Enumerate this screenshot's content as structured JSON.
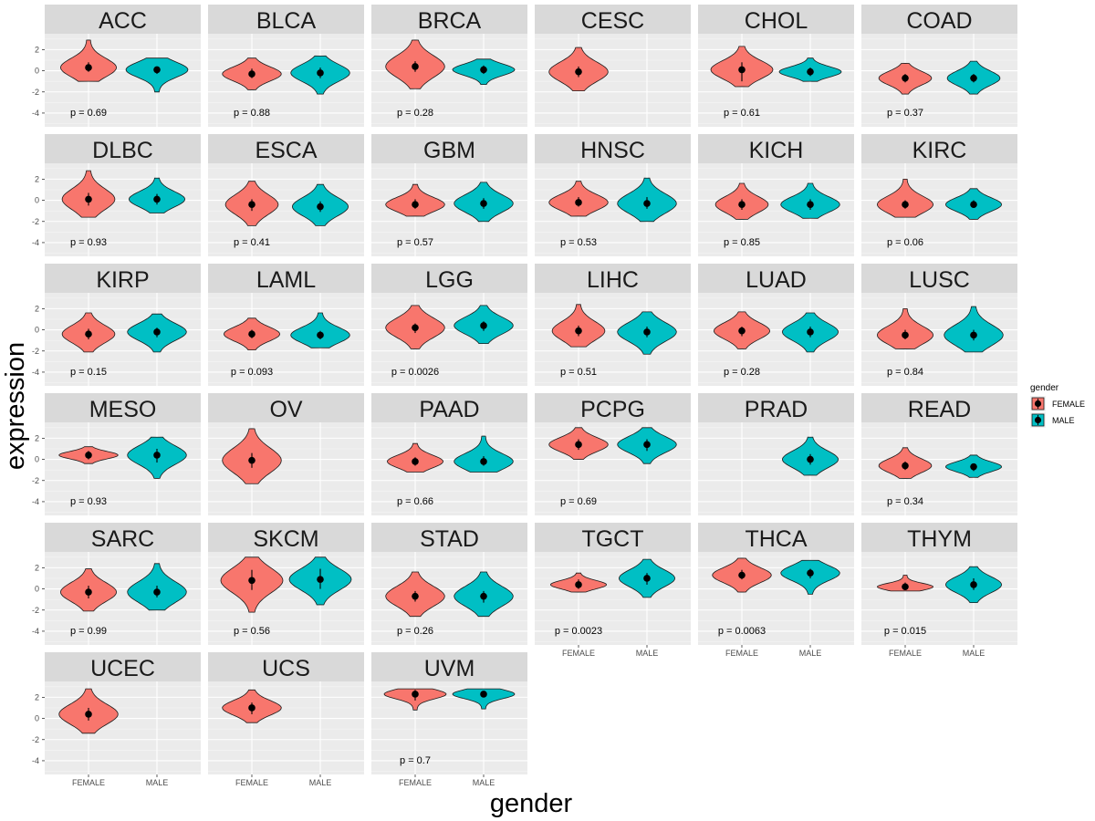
{
  "chart_data": {
    "type": "violin",
    "facet_by": "cancer_type",
    "xlabel": "gender",
    "ylabel": "expression",
    "categories": [
      "FEMALE",
      "MALE"
    ],
    "y_ticks": [
      2,
      0,
      -2,
      -4
    ],
    "ylim": [
      -5.3,
      3.5
    ],
    "legend": {
      "title": "gender",
      "position": "right",
      "items": [
        {
          "label": "FEMALE",
          "color": "#F8766D"
        },
        {
          "label": "MALE",
          "color": "#00BFC4"
        }
      ]
    },
    "panels": [
      {
        "name": "ACC",
        "p": "p = 0.69",
        "groups": [
          {
            "gender": "FEMALE",
            "min": -1.0,
            "max": 2.9,
            "median": 0.3,
            "iqr": [
              -0.1,
              0.8
            ],
            "hw": 0.9
          },
          {
            "gender": "MALE",
            "min": -2.0,
            "max": 1.2,
            "median": 0.1,
            "iqr": [
              -0.3,
              0.4
            ],
            "hw": 1.0
          }
        ]
      },
      {
        "name": "BLCA",
        "p": "p = 0.88",
        "groups": [
          {
            "gender": "FEMALE",
            "min": -1.8,
            "max": 1.2,
            "median": -0.3,
            "iqr": [
              -0.7,
              0.2
            ],
            "hw": 0.95
          },
          {
            "gender": "MALE",
            "min": -2.2,
            "max": 1.4,
            "median": -0.2,
            "iqr": [
              -0.7,
              0.3
            ],
            "hw": 0.95
          }
        ]
      },
      {
        "name": "BRCA",
        "p": "p = 0.28",
        "groups": [
          {
            "gender": "FEMALE",
            "min": -1.7,
            "max": 2.9,
            "median": 0.4,
            "iqr": [
              -0.1,
              0.9
            ],
            "hw": 0.95
          },
          {
            "gender": "MALE",
            "min": -1.3,
            "max": 1.1,
            "median": 0.1,
            "iqr": [
              -0.3,
              0.5
            ],
            "hw": 1.0
          }
        ]
      },
      {
        "name": "CESC",
        "p": "",
        "groups": [
          {
            "gender": "FEMALE",
            "min": -1.9,
            "max": 2.2,
            "median": -0.1,
            "iqr": [
              -0.6,
              0.4
            ],
            "hw": 0.95
          }
        ]
      },
      {
        "name": "CHOL",
        "p": "p = 0.61",
        "groups": [
          {
            "gender": "FEMALE",
            "min": -1.5,
            "max": 2.3,
            "median": 0.1,
            "iqr": [
              -1.0,
              0.8
            ],
            "hw": 1.0
          },
          {
            "gender": "MALE",
            "min": -1.0,
            "max": 1.2,
            "median": -0.1,
            "iqr": [
              -0.5,
              0.3
            ],
            "hw": 1.0
          }
        ]
      },
      {
        "name": "COAD",
        "p": "p = 0.37",
        "groups": [
          {
            "gender": "FEMALE",
            "min": -2.2,
            "max": 0.7,
            "median": -0.7,
            "iqr": [
              -1.1,
              -0.3
            ],
            "hw": 0.85
          },
          {
            "gender": "MALE",
            "min": -2.2,
            "max": 0.9,
            "median": -0.7,
            "iqr": [
              -1.1,
              -0.3
            ],
            "hw": 0.85
          }
        ]
      },
      {
        "name": "DLBC",
        "p": "p = 0.93",
        "groups": [
          {
            "gender": "FEMALE",
            "min": -1.6,
            "max": 2.8,
            "median": 0.1,
            "iqr": [
              -0.5,
              0.7
            ],
            "hw": 0.85
          },
          {
            "gender": "MALE",
            "min": -1.2,
            "max": 2.1,
            "median": 0.1,
            "iqr": [
              -0.4,
              0.6
            ],
            "hw": 0.9
          }
        ]
      },
      {
        "name": "ESCA",
        "p": "p = 0.41",
        "groups": [
          {
            "gender": "FEMALE",
            "min": -2.4,
            "max": 1.8,
            "median": -0.4,
            "iqr": [
              -1.0,
              0.1
            ],
            "hw": 0.85
          },
          {
            "gender": "MALE",
            "min": -2.4,
            "max": 1.5,
            "median": -0.6,
            "iqr": [
              -1.1,
              -0.1
            ],
            "hw": 0.9
          }
        ]
      },
      {
        "name": "GBM",
        "p": "p = 0.57",
        "groups": [
          {
            "gender": "FEMALE",
            "min": -1.5,
            "max": 1.5,
            "median": -0.4,
            "iqr": [
              -0.8,
              0.1
            ],
            "hw": 0.95
          },
          {
            "gender": "MALE",
            "min": -2.0,
            "max": 1.7,
            "median": -0.3,
            "iqr": [
              -0.8,
              0.2
            ],
            "hw": 0.95
          }
        ]
      },
      {
        "name": "HNSC",
        "p": "p = 0.53",
        "groups": [
          {
            "gender": "FEMALE",
            "min": -1.5,
            "max": 1.8,
            "median": -0.2,
            "iqr": [
              -0.6,
              0.3
            ],
            "hw": 0.95
          },
          {
            "gender": "MALE",
            "min": -2.0,
            "max": 2.1,
            "median": -0.3,
            "iqr": [
              -0.8,
              0.3
            ],
            "hw": 0.95
          }
        ]
      },
      {
        "name": "KICH",
        "p": "p = 0.85",
        "groups": [
          {
            "gender": "FEMALE",
            "min": -1.8,
            "max": 1.6,
            "median": -0.4,
            "iqr": [
              -0.9,
              0.1
            ],
            "hw": 0.85
          },
          {
            "gender": "MALE",
            "min": -1.7,
            "max": 1.6,
            "median": -0.4,
            "iqr": [
              -0.9,
              0.1
            ],
            "hw": 0.95
          }
        ]
      },
      {
        "name": "KIRC",
        "p": "p = 0.06",
        "groups": [
          {
            "gender": "FEMALE",
            "min": -1.6,
            "max": 2.0,
            "median": -0.4,
            "iqr": [
              -0.8,
              0.0
            ],
            "hw": 0.9
          },
          {
            "gender": "MALE",
            "min": -1.8,
            "max": 1.1,
            "median": -0.4,
            "iqr": [
              -0.7,
              0.0
            ],
            "hw": 0.9
          }
        ]
      },
      {
        "name": "KIRP",
        "p": "p = 0.15",
        "groups": [
          {
            "gender": "FEMALE",
            "min": -2.1,
            "max": 1.6,
            "median": -0.4,
            "iqr": [
              -0.9,
              0.1
            ],
            "hw": 0.85
          },
          {
            "gender": "MALE",
            "min": -2.1,
            "max": 1.5,
            "median": -0.2,
            "iqr": [
              -0.7,
              0.2
            ],
            "hw": 0.95
          }
        ]
      },
      {
        "name": "LAML",
        "p": "p = 0.093",
        "groups": [
          {
            "gender": "FEMALE",
            "min": -1.9,
            "max": 1.1,
            "median": -0.4,
            "iqr": [
              -0.8,
              0.0
            ],
            "hw": 0.9
          },
          {
            "gender": "MALE",
            "min": -1.7,
            "max": 1.6,
            "median": -0.5,
            "iqr": [
              -0.9,
              -0.1
            ],
            "hw": 0.95
          }
        ]
      },
      {
        "name": "LGG",
        "p": "p = 0.0026",
        "groups": [
          {
            "gender": "FEMALE",
            "min": -1.8,
            "max": 2.3,
            "median": 0.2,
            "iqr": [
              -0.3,
              0.6
            ],
            "hw": 0.95
          },
          {
            "gender": "MALE",
            "min": -1.3,
            "max": 2.3,
            "median": 0.4,
            "iqr": [
              -0.1,
              0.8
            ],
            "hw": 0.95
          }
        ]
      },
      {
        "name": "LIHC",
        "p": "p = 0.51",
        "groups": [
          {
            "gender": "FEMALE",
            "min": -1.6,
            "max": 2.4,
            "median": -0.1,
            "iqr": [
              -0.6,
              0.4
            ],
            "hw": 0.85
          },
          {
            "gender": "MALE",
            "min": -2.3,
            "max": 1.7,
            "median": -0.2,
            "iqr": [
              -0.7,
              0.3
            ],
            "hw": 0.95
          }
        ]
      },
      {
        "name": "LUAD",
        "p": "p = 0.28",
        "groups": [
          {
            "gender": "FEMALE",
            "min": -1.8,
            "max": 1.7,
            "median": -0.1,
            "iqr": [
              -0.6,
              0.3
            ],
            "hw": 0.9
          },
          {
            "gender": "MALE",
            "min": -2.1,
            "max": 1.6,
            "median": -0.2,
            "iqr": [
              -0.7,
              0.3
            ],
            "hw": 0.9
          }
        ]
      },
      {
        "name": "LUSC",
        "p": "p = 0.84",
        "groups": [
          {
            "gender": "FEMALE",
            "min": -1.8,
            "max": 2.0,
            "median": -0.5,
            "iqr": [
              -0.9,
              0.0
            ],
            "hw": 0.9
          },
          {
            "gender": "MALE",
            "min": -2.1,
            "max": 2.2,
            "median": -0.5,
            "iqr": [
              -1.0,
              0.0
            ],
            "hw": 0.95
          }
        ]
      },
      {
        "name": "MESO",
        "p": "p = 0.93",
        "groups": [
          {
            "gender": "FEMALE",
            "min": -0.4,
            "max": 1.2,
            "median": 0.4,
            "iqr": [
              0.0,
              0.8
            ],
            "hw": 0.95
          },
          {
            "gender": "MALE",
            "min": -1.8,
            "max": 2.1,
            "median": 0.4,
            "iqr": [
              -0.3,
              1.0
            ],
            "hw": 0.95
          }
        ]
      },
      {
        "name": "OV",
        "p": "",
        "groups": [
          {
            "gender": "FEMALE",
            "min": -2.3,
            "max": 2.9,
            "median": -0.1,
            "iqr": [
              -0.8,
              0.6
            ],
            "hw": 0.95
          }
        ]
      },
      {
        "name": "PAAD",
        "p": "p = 0.66",
        "groups": [
          {
            "gender": "FEMALE",
            "min": -1.2,
            "max": 1.5,
            "median": -0.2,
            "iqr": [
              -0.6,
              0.2
            ],
            "hw": 0.9
          },
          {
            "gender": "MALE",
            "min": -1.2,
            "max": 2.2,
            "median": -0.2,
            "iqr": [
              -0.6,
              0.3
            ],
            "hw": 0.95
          }
        ]
      },
      {
        "name": "PCPG",
        "p": "p = 0.69",
        "groups": [
          {
            "gender": "FEMALE",
            "min": 0.0,
            "max": 3.0,
            "median": 1.4,
            "iqr": [
              0.9,
              1.9
            ],
            "hw": 0.95
          },
          {
            "gender": "MALE",
            "min": -0.4,
            "max": 3.0,
            "median": 1.4,
            "iqr": [
              0.8,
              1.9
            ],
            "hw": 0.95
          }
        ]
      },
      {
        "name": "PRAD",
        "p": "",
        "groups": [
          {
            "gender": "MALE",
            "min": -1.5,
            "max": 2.1,
            "median": 0.0,
            "iqr": [
              -0.5,
              0.5
            ],
            "hw": 0.9
          }
        ]
      },
      {
        "name": "READ",
        "p": "p = 0.34",
        "groups": [
          {
            "gender": "FEMALE",
            "min": -1.8,
            "max": 1.1,
            "median": -0.6,
            "iqr": [
              -1.0,
              -0.2
            ],
            "hw": 0.85
          },
          {
            "gender": "MALE",
            "min": -1.7,
            "max": 0.4,
            "median": -0.7,
            "iqr": [
              -1.1,
              -0.4
            ],
            "hw": 0.9
          }
        ]
      },
      {
        "name": "SARC",
        "p": "p = 0.99",
        "groups": [
          {
            "gender": "FEMALE",
            "min": -2.1,
            "max": 1.9,
            "median": -0.3,
            "iqr": [
              -0.9,
              0.3
            ],
            "hw": 0.9
          },
          {
            "gender": "MALE",
            "min": -2.0,
            "max": 2.4,
            "median": -0.3,
            "iqr": [
              -0.8,
              0.3
            ],
            "hw": 0.95
          }
        ]
      },
      {
        "name": "SKCM",
        "p": "p = 0.56",
        "groups": [
          {
            "gender": "FEMALE",
            "min": -2.2,
            "max": 3.0,
            "median": 0.8,
            "iqr": [
              -0.1,
              1.8
            ],
            "hw": 1.0
          },
          {
            "gender": "MALE",
            "min": -1.5,
            "max": 3.0,
            "median": 0.9,
            "iqr": [
              0.0,
              1.9
            ],
            "hw": 1.0
          }
        ]
      },
      {
        "name": "STAD",
        "p": "p = 0.26",
        "groups": [
          {
            "gender": "FEMALE",
            "min": -2.6,
            "max": 1.6,
            "median": -0.7,
            "iqr": [
              -1.2,
              -0.2
            ],
            "hw": 0.95
          },
          {
            "gender": "MALE",
            "min": -2.6,
            "max": 1.6,
            "median": -0.7,
            "iqr": [
              -1.3,
              -0.2
            ],
            "hw": 0.95
          }
        ]
      },
      {
        "name": "TGCT",
        "p": "p = 0.0023",
        "groups": [
          {
            "gender": "FEMALE",
            "min": -0.3,
            "max": 1.5,
            "median": 0.4,
            "iqr": [
              0.0,
              0.9
            ],
            "hw": 0.9
          },
          {
            "gender": "MALE",
            "min": -0.8,
            "max": 2.8,
            "median": 1.0,
            "iqr": [
              0.4,
              1.5
            ],
            "hw": 0.9
          }
        ]
      },
      {
        "name": "THCA",
        "p": "p = 0.0063",
        "groups": [
          {
            "gender": "FEMALE",
            "min": -0.3,
            "max": 2.9,
            "median": 1.3,
            "iqr": [
              0.9,
              1.8
            ],
            "hw": 0.95
          },
          {
            "gender": "MALE",
            "min": -0.5,
            "max": 2.7,
            "median": 1.5,
            "iqr": [
              1.0,
              1.9
            ],
            "hw": 0.95
          }
        ]
      },
      {
        "name": "THYM",
        "p": "p = 0.015",
        "groups": [
          {
            "gender": "FEMALE",
            "min": -0.2,
            "max": 1.3,
            "median": 0.2,
            "iqr": [
              -0.1,
              0.6
            ],
            "hw": 0.9
          },
          {
            "gender": "MALE",
            "min": -1.3,
            "max": 2.1,
            "median": 0.4,
            "iqr": [
              -0.1,
              1.0
            ],
            "hw": 0.9
          }
        ]
      },
      {
        "name": "UCEC",
        "p": "",
        "groups": [
          {
            "gender": "FEMALE",
            "min": -1.4,
            "max": 2.8,
            "median": 0.4,
            "iqr": [
              -0.2,
              1.0
            ],
            "hw": 0.95
          }
        ]
      },
      {
        "name": "UCS",
        "p": "",
        "groups": [
          {
            "gender": "FEMALE",
            "min": -0.4,
            "max": 2.7,
            "median": 1.0,
            "iqr": [
              0.4,
              1.5
            ],
            "hw": 0.95
          }
        ]
      },
      {
        "name": "UVM",
        "p": "p = 0.7",
        "groups": [
          {
            "gender": "FEMALE",
            "min": 0.8,
            "max": 2.8,
            "median": 2.3,
            "iqr": [
              1.7,
              2.7
            ],
            "hw": 1.0
          },
          {
            "gender": "MALE",
            "min": 0.9,
            "max": 2.8,
            "median": 2.3,
            "iqr": [
              2.1,
              2.5
            ],
            "hw": 1.0
          }
        ]
      }
    ]
  }
}
